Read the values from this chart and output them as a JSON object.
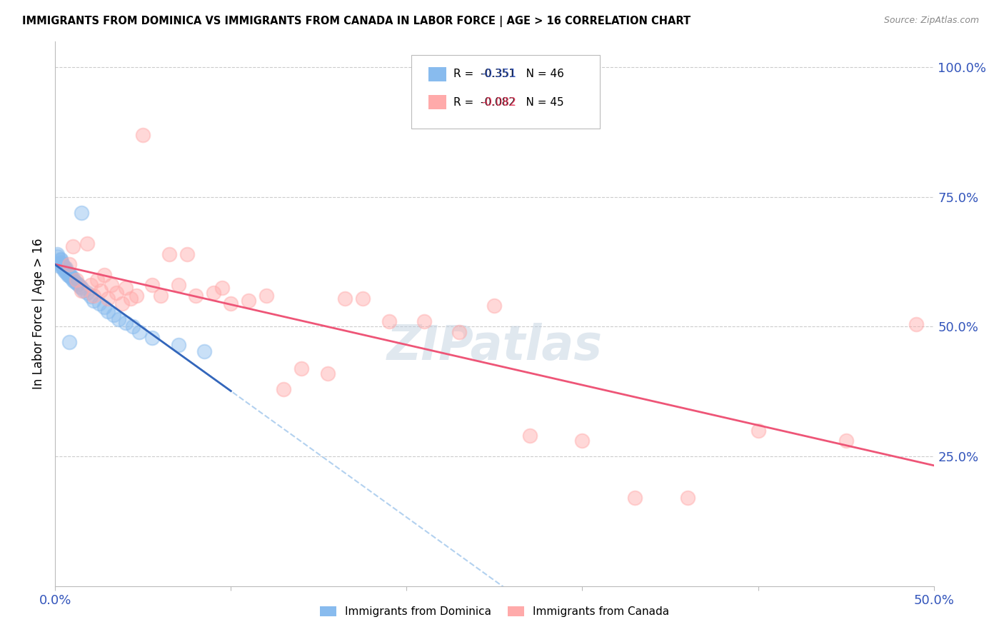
{
  "title": "IMMIGRANTS FROM DOMINICA VS IMMIGRANTS FROM CANADA IN LABOR FORCE | AGE > 16 CORRELATION CHART",
  "source": "Source: ZipAtlas.com",
  "ylabel": "In Labor Force | Age > 16",
  "ytick_labels": [
    "25.0%",
    "50.0%",
    "75.0%",
    "100.0%"
  ],
  "ytick_values": [
    0.25,
    0.5,
    0.75,
    1.0
  ],
  "xlim": [
    0.0,
    0.5
  ],
  "ylim": [
    0.0,
    1.05
  ],
  "legend_blue_r": "-0.351",
  "legend_blue_n": "46",
  "legend_pink_r": "-0.082",
  "legend_pink_n": "45",
  "color_blue": "#88BBEE",
  "color_pink": "#FFAAAA",
  "color_blue_line": "#3366BB",
  "color_pink_line": "#EE5577",
  "color_blue_dashed": "#AACCEE",
  "watermark_color": "#BBCCDD",
  "blue_scatter_x": [
    0.001,
    0.001,
    0.002,
    0.002,
    0.003,
    0.003,
    0.003,
    0.004,
    0.004,
    0.004,
    0.005,
    0.005,
    0.005,
    0.006,
    0.006,
    0.006,
    0.007,
    0.007,
    0.008,
    0.008,
    0.009,
    0.009,
    0.01,
    0.01,
    0.011,
    0.012,
    0.013,
    0.014,
    0.015,
    0.016,
    0.018,
    0.02,
    0.022,
    0.025,
    0.028,
    0.03,
    0.033,
    0.036,
    0.04,
    0.044,
    0.048,
    0.055,
    0.07,
    0.085,
    0.015,
    0.008
  ],
  "blue_scatter_y": [
    0.635,
    0.64,
    0.618,
    0.622,
    0.63,
    0.625,
    0.628,
    0.615,
    0.619,
    0.622,
    0.608,
    0.611,
    0.615,
    0.605,
    0.61,
    0.613,
    0.6,
    0.603,
    0.598,
    0.601,
    0.595,
    0.598,
    0.59,
    0.594,
    0.588,
    0.585,
    0.582,
    0.578,
    0.575,
    0.57,
    0.565,
    0.558,
    0.55,
    0.545,
    0.538,
    0.53,
    0.522,
    0.515,
    0.508,
    0.5,
    0.49,
    0.478,
    0.465,
    0.452,
    0.72,
    0.47
  ],
  "pink_scatter_x": [
    0.008,
    0.01,
    0.012,
    0.015,
    0.018,
    0.02,
    0.022,
    0.024,
    0.026,
    0.028,
    0.03,
    0.032,
    0.035,
    0.038,
    0.04,
    0.043,
    0.046,
    0.05,
    0.055,
    0.06,
    0.065,
    0.07,
    0.075,
    0.08,
    0.09,
    0.095,
    0.1,
    0.11,
    0.12,
    0.13,
    0.14,
    0.155,
    0.165,
    0.175,
    0.19,
    0.21,
    0.23,
    0.25,
    0.27,
    0.3,
    0.33,
    0.36,
    0.4,
    0.45,
    0.49
  ],
  "pink_scatter_y": [
    0.62,
    0.655,
    0.59,
    0.57,
    0.66,
    0.58,
    0.56,
    0.59,
    0.57,
    0.6,
    0.555,
    0.58,
    0.565,
    0.545,
    0.575,
    0.555,
    0.56,
    0.87,
    0.58,
    0.56,
    0.64,
    0.58,
    0.64,
    0.56,
    0.565,
    0.575,
    0.545,
    0.55,
    0.56,
    0.38,
    0.42,
    0.41,
    0.555,
    0.555,
    0.51,
    0.51,
    0.49,
    0.54,
    0.29,
    0.28,
    0.17,
    0.17,
    0.3,
    0.28,
    0.505
  ]
}
